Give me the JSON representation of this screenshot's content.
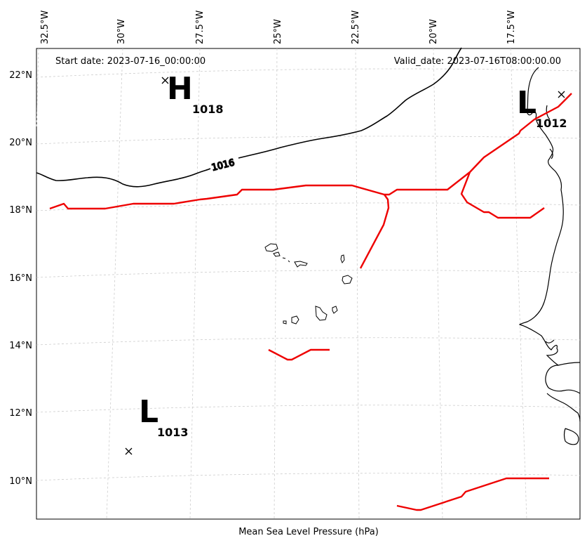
{
  "header": {
    "start_date": "Start date: 2023-07-16_00:00:00",
    "valid_date": "Valid_date: 2023-07-16T08:00:00.00"
  },
  "footer": {
    "caption": "Mean Sea Level Pressure (hPa)"
  },
  "axes": {
    "lon_ticks": [
      "32.5°W",
      "30°W",
      "27.5°W",
      "25°W",
      "22.5°W",
      "20°W",
      "17.5°W"
    ],
    "lat_ticks": [
      "22°N",
      "20°N",
      "18°N",
      "16°N",
      "14°N",
      "12°N",
      "10°N"
    ],
    "grid": true
  },
  "pressure_centers": [
    {
      "type": "H",
      "value": "1018"
    },
    {
      "type": "L",
      "value": "1012"
    },
    {
      "type": "L",
      "value": "1013"
    }
  ],
  "isobars": [
    {
      "label": "1016",
      "color": "#000000"
    }
  ],
  "colors": {
    "isobar": "#000000",
    "front": "#ee0000",
    "coastline": "#000000",
    "grid": "#cccccc"
  },
  "features": {
    "front_segments": 4,
    "coastline": "West Africa",
    "islands": "Cape Verde"
  }
}
